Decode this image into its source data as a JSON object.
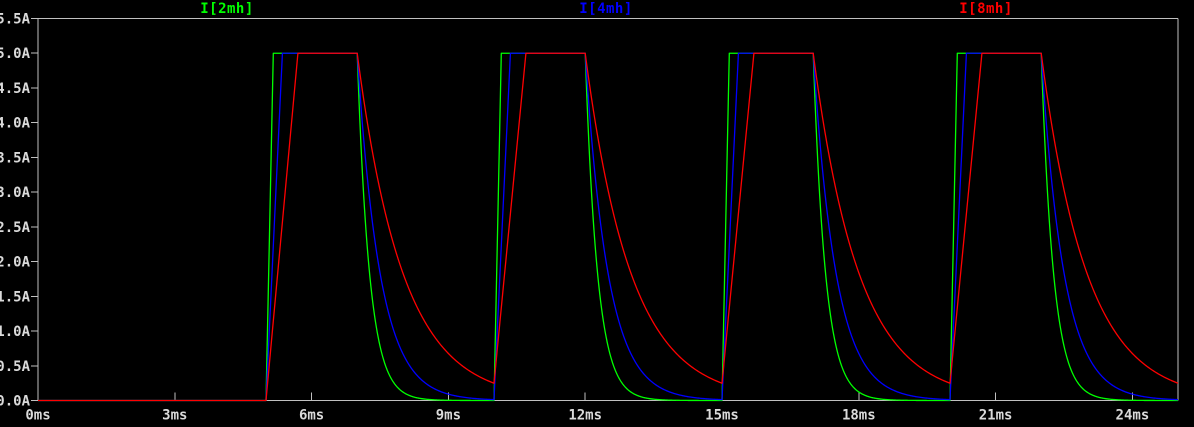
{
  "window": {
    "kind": "waveform-plot-pane"
  },
  "colors": {
    "background": "#000000",
    "axis_line": "#c0c0c0",
    "axis_text": "#dadada",
    "trace_green": "#00ff00",
    "trace_blue": "#0000ff",
    "trace_red": "#ff0000"
  },
  "legend": [
    {
      "label": "I[2mh]",
      "color": "#00ff00"
    },
    {
      "label": "I[4mh]",
      "color": "#0000ff"
    },
    {
      "label": "I[8mh]",
      "color": "#ff0000"
    }
  ],
  "chart_data": {
    "type": "line",
    "title": "",
    "x_unit": "ms",
    "y_unit": "A",
    "xlim_ms": [
      0,
      25
    ],
    "ylim_A": [
      0,
      5.5
    ],
    "grid": false,
    "legend_position": "top",
    "x_tick_values_ms": [
      0,
      3,
      6,
      9,
      12,
      15,
      18,
      21,
      24
    ],
    "x_tick_labels": [
      "0ms",
      "3ms",
      "6ms",
      "9ms",
      "12ms",
      "15ms",
      "18ms",
      "21ms",
      "24ms"
    ],
    "y_tick_values_A": [
      0.0,
      0.5,
      1.0,
      1.5,
      2.0,
      2.5,
      3.0,
      3.5,
      4.0,
      4.5,
      5.0,
      5.5
    ],
    "y_tick_labels": [
      "0.0A",
      "0.5A",
      "1.0A",
      "1.5A",
      "2.0A",
      "2.5A",
      "3.0A",
      "3.5A",
      "4.0A",
      "4.5A",
      "5.0A",
      "5.5A"
    ],
    "waveform_description": "Current pulses: zero until 5ms; switch ON intervals 5-7, 10-12, 15-17, 20-22 ms; linear ramp up to 5A plateau (ramp time proportional to inductance), then exponential decay toward 0A (time constant proportional to inductance).",
    "amplitude_A": 5.0,
    "pulse_on_ms": [
      5,
      10,
      15,
      20
    ],
    "on_duration_ms": 2,
    "t_end_ms": 25,
    "series": [
      {
        "name": "I[2mh]",
        "color": "#00ff00",
        "rise_ms": 0.16,
        "decay_tau_ms": 0.27,
        "key_points": "0A until 5ms; 5A from 5.16-7ms; decays to ~0A by 8.5ms; repeats each 5ms"
      },
      {
        "name": "I[4mh]",
        "color": "#0000ff",
        "rise_ms": 0.36,
        "decay_tau_ms": 0.5,
        "key_points": "0A until 5ms; 5A from 5.36-7ms; decays to ~0.01A by 10ms; repeats each 5ms"
      },
      {
        "name": "I[8mh]",
        "color": "#ff0000",
        "rise_ms": 0.7,
        "decay_tau_ms": 1.0,
        "key_points": "0A until 5ms; 5A from 5.7-7ms; decays to ~0.25A at 10ms when next pulse starts; repeats each 5ms"
      }
    ]
  }
}
